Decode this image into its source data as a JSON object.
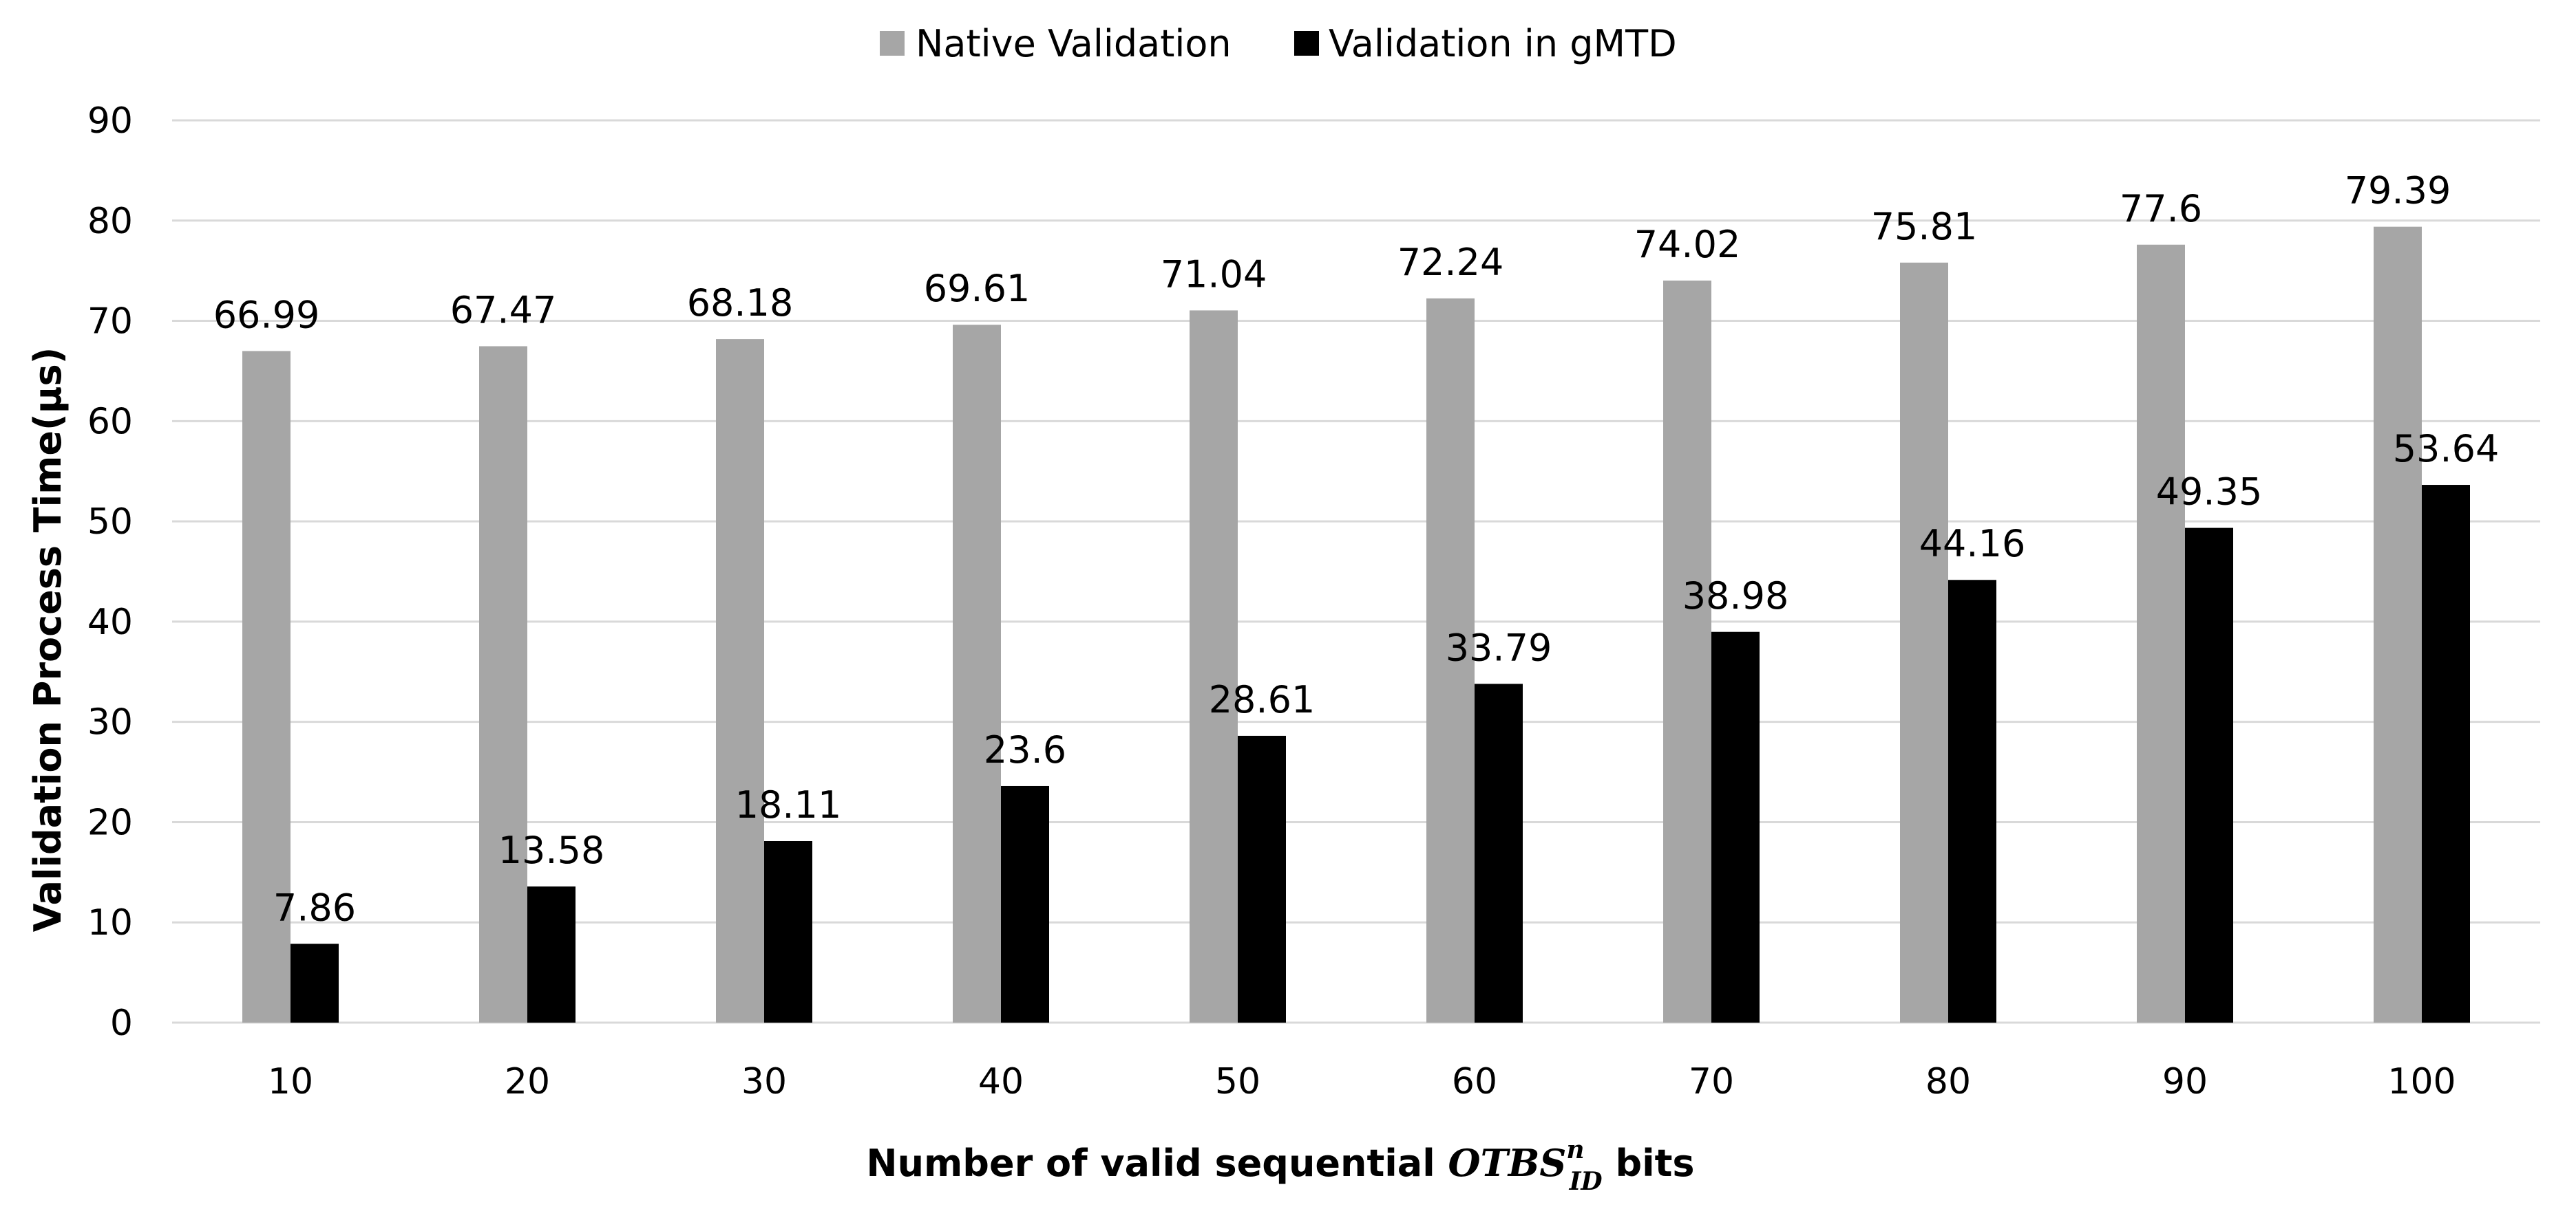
{
  "chart_data": {
    "type": "bar",
    "title": "",
    "xlabel": {
      "prefix": "Number of valid sequential ",
      "variable": "OTBS",
      "superscript": "n",
      "subscript": "ID",
      "suffix": " bits"
    },
    "ylabel": "Validation Process Time(µs)",
    "ylim": [
      0,
      90
    ],
    "yticks": [
      0,
      10,
      20,
      30,
      40,
      50,
      60,
      70,
      80,
      90
    ],
    "grid": true,
    "legend_position": "top-center",
    "categories": [
      "10",
      "20",
      "30",
      "40",
      "50",
      "60",
      "70",
      "80",
      "90",
      "100"
    ],
    "series": [
      {
        "name": "Native Validation",
        "color": "#a6a6a6",
        "values": [
          66.99,
          67.47,
          68.18,
          69.61,
          71.04,
          72.24,
          74.02,
          75.81,
          77.6,
          79.39
        ],
        "labels": [
          "66.99",
          "67.47",
          "68.18",
          "69.61",
          "71.04",
          "72.24",
          "74.02",
          "75.81",
          "77.6",
          "79.39"
        ]
      },
      {
        "name": "Validation in gMTD",
        "color": "#000000",
        "values": [
          7.86,
          13.58,
          18.11,
          23.6,
          28.61,
          33.79,
          38.98,
          44.16,
          49.35,
          53.64
        ],
        "labels": [
          "7.86",
          "13.58",
          "18.11",
          "23.6",
          "28.61",
          "33.79",
          "38.98",
          "44.16",
          "49.35",
          "53.64"
        ]
      }
    ],
    "gridline_color": "#d9d9d9",
    "axis_color": "#d9d9d9"
  }
}
